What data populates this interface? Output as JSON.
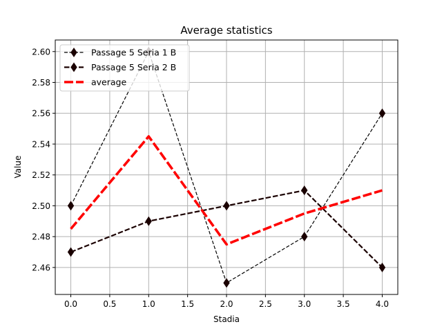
{
  "chart_data": {
    "type": "line",
    "title": "Average statistics",
    "xlabel": "Stadia",
    "ylabel": "Value",
    "x": [
      0,
      1,
      2,
      3,
      4
    ],
    "xlim": [
      -0.2,
      4.2
    ],
    "ylim": [
      2.4425,
      2.6075
    ],
    "xticks": [
      "0.0",
      "0.5",
      "1.0",
      "1.5",
      "2.0",
      "2.5",
      "3.0",
      "3.5",
      "4.0"
    ],
    "yticks": [
      "2.46",
      "2.48",
      "2.50",
      "2.52",
      "2.54",
      "2.56",
      "2.58",
      "2.60"
    ],
    "grid": true,
    "legend_position": "upper left",
    "series": [
      {
        "name": "Passage 5 Seria 1 B",
        "values": [
          2.5,
          2.6,
          2.45,
          2.48,
          2.56
        ],
        "color": "#000000",
        "marker_color": "#1a0000",
        "style": "dashed-thin",
        "marker": "diamond"
      },
      {
        "name": "Passage 5 Seria 2 B",
        "values": [
          2.47,
          2.49,
          2.5,
          2.51,
          2.46
        ],
        "color": "#1a0000",
        "marker_color": "#1a0000",
        "style": "dashed-thick",
        "marker": "diamond"
      },
      {
        "name": "average",
        "values": [
          2.485,
          2.545,
          2.475,
          2.495,
          2.51
        ],
        "color": "#ff0000",
        "style": "dashdot-thick",
        "marker": "none"
      }
    ]
  }
}
